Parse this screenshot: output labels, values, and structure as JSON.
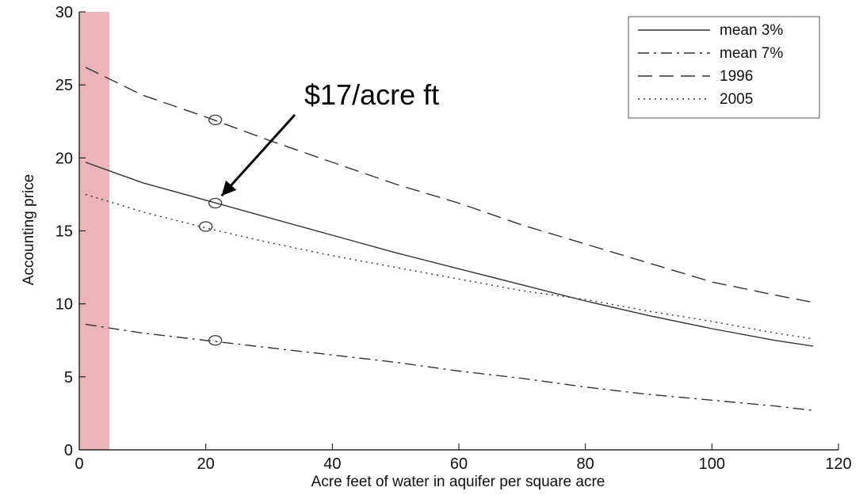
{
  "chart_data": {
    "type": "line",
    "xlabel": "Acre feet of water in aquifer per square acre",
    "ylabel": "Accounting price",
    "xlim": [
      0,
      120
    ],
    "ylim": [
      0,
      30
    ],
    "xticks": [
      0,
      20,
      40,
      60,
      80,
      100,
      120
    ],
    "yticks": [
      0,
      5,
      10,
      15,
      20,
      25,
      30
    ],
    "grid": false,
    "legend_position": "top-right",
    "series": [
      {
        "name": "mean 3%",
        "style": "solid",
        "x": [
          1,
          10,
          20,
          30,
          40,
          50,
          60,
          70,
          80,
          90,
          100,
          110,
          116
        ],
        "y": [
          19.7,
          18.3,
          17.1,
          15.9,
          14.7,
          13.5,
          12.4,
          11.3,
          10.2,
          9.2,
          8.3,
          7.5,
          7.1
        ]
      },
      {
        "name": "mean 7%",
        "style": "dashdot",
        "x": [
          1,
          10,
          20,
          30,
          40,
          50,
          60,
          70,
          80,
          90,
          100,
          110,
          116
        ],
        "y": [
          8.6,
          8.0,
          7.5,
          7.0,
          6.5,
          6.0,
          5.4,
          4.9,
          4.3,
          3.8,
          3.4,
          3.0,
          2.7
        ]
      },
      {
        "name": "1996",
        "style": "dashed",
        "x": [
          1,
          10,
          20,
          30,
          40,
          50,
          60,
          70,
          80,
          90,
          100,
          110,
          116
        ],
        "y": [
          26.2,
          24.3,
          22.8,
          21.2,
          19.7,
          18.2,
          16.9,
          15.4,
          14.1,
          12.8,
          11.5,
          10.6,
          10.1
        ]
      },
      {
        "name": "2005",
        "style": "dotted",
        "x": [
          1,
          10,
          20,
          30,
          40,
          50,
          60,
          70,
          80,
          90,
          100,
          110,
          116
        ],
        "y": [
          17.5,
          16.3,
          15.2,
          14.2,
          13.3,
          12.5,
          11.7,
          10.9,
          10.3,
          9.5,
          8.8,
          8.0,
          7.6
        ]
      }
    ],
    "markers": [
      {
        "x": 21.5,
        "y": 22.6
      },
      {
        "x": 21.5,
        "y": 16.9
      },
      {
        "x": 20,
        "y": 15.3
      },
      {
        "x": 21.5,
        "y": 7.5
      }
    ],
    "highlight_band": {
      "x_from": 0,
      "x_to": 4,
      "color": "#e8a7aa"
    },
    "annotation": {
      "text": "$17/acre ft",
      "points_to": {
        "x": 22.5,
        "y": 17.4
      }
    }
  },
  "colors": {
    "axis": "#000000",
    "line": "#333333",
    "highlight": "#e8a7aa",
    "arrow": "#000000"
  }
}
